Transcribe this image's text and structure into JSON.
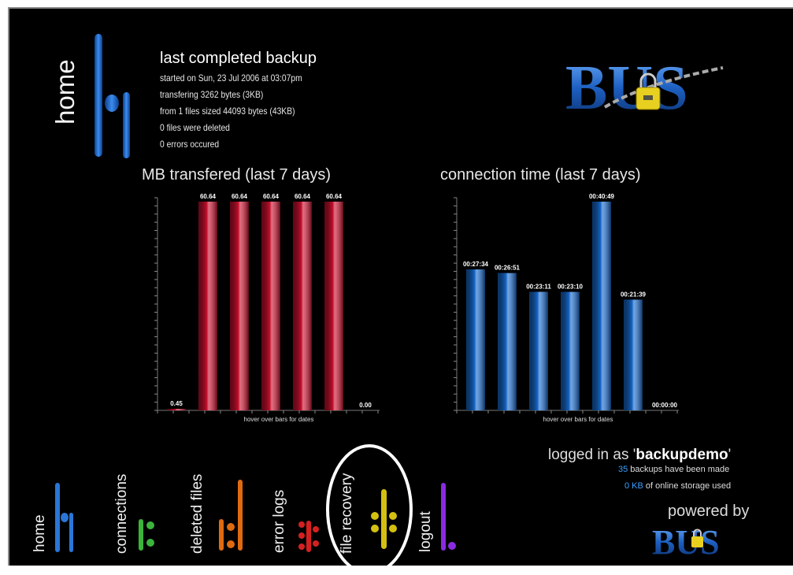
{
  "header": {
    "home_label": "home",
    "backup_title": "last completed backup",
    "backup_lines": [
      "started on Sun, 23 Jul 2006 at 03:07pm",
      "transfering 3262 bytes (3KB)",
      "from 1 files sized 44093 bytes (43KB)",
      "0 files were deleted",
      "0 errors occured"
    ],
    "brand": "BUS"
  },
  "colors": {
    "bar_red": "#c8102e",
    "bar_blue": "#1667c9",
    "accent_blue": "#3aa0ff",
    "nav_green": "#3cb43c",
    "nav_orange": "#e06a10",
    "nav_red": "#d62020",
    "nav_yellow": "#d4c010",
    "nav_purple": "#8a2be2"
  },
  "chart_data": [
    {
      "type": "bar",
      "title": "MB transfered (last 7 days)",
      "xlabel": "hover over bars for dates",
      "values": [
        0.45,
        60.64,
        60.64,
        60.64,
        60.64,
        60.64,
        0.0
      ],
      "labels": [
        "0.45",
        "60.64",
        "60.64",
        "60.64",
        "60.64",
        "60.64",
        "0.00"
      ],
      "ylim": [
        0,
        60.64
      ]
    },
    {
      "type": "bar",
      "title": "connection time (last 7 days)",
      "xlabel": "hover over bars for dates",
      "values": [
        1654,
        1611,
        1391,
        1390,
        2449,
        1299,
        0
      ],
      "labels": [
        "00:27:34",
        "00:26:51",
        "00:23:11",
        "00:23:10",
        "00:40:49",
        "00:21:39",
        "00:00:00"
      ],
      "ylim": [
        0,
        2449
      ]
    }
  ],
  "status": {
    "logged_prefix": "logged in as '",
    "username": "backupdemo",
    "logged_suffix": "'",
    "backups_count": "35",
    "backups_text": " backups have been made",
    "storage_value": "0 KB",
    "storage_text": " of online storage used",
    "powered_by": "powered by"
  },
  "nav": [
    {
      "label": "home",
      "icon": "home-icon"
    },
    {
      "label": "connections",
      "icon": "connections-icon"
    },
    {
      "label": "deleted files",
      "icon": "deleted-files-icon"
    },
    {
      "label": "error logs",
      "icon": "error-logs-icon"
    },
    {
      "label": "file recovery",
      "icon": "file-recovery-icon"
    },
    {
      "label": "logout",
      "icon": "logout-icon"
    }
  ]
}
